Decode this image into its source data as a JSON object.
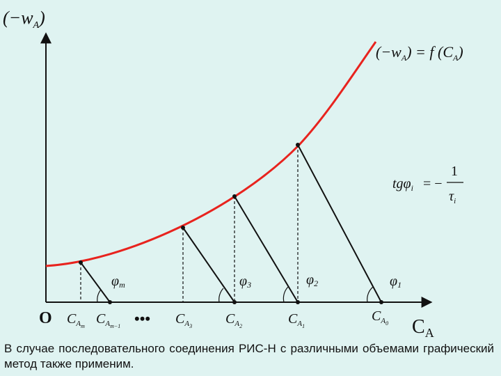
{
  "diagram": {
    "y_axis_label": "(−w",
    "y_axis_label_sub": "A",
    "y_axis_label_close": ")",
    "x_axis_label": "C",
    "x_axis_label_sub": "A",
    "origin_label": "O",
    "curve_label": "(−w",
    "curve_label_sub": "A",
    "curve_label_mid": ") = f (C",
    "curve_label_sub2": "A",
    "curve_label_close": ")",
    "formula_lhs": "tgφ",
    "formula_lhs_sub": "i",
    "formula_eq": "= −",
    "formula_num": "1",
    "formula_den": "τ",
    "formula_den_sub": "i",
    "ellipsis": "•••",
    "x_ticks": [
      {
        "main": "C",
        "sub": "A",
        "subsub": "m"
      },
      {
        "main": "C",
        "sub": "A",
        "subsub": "m−1"
      },
      {
        "main": "C",
        "sub": "A",
        "subsub": "3"
      },
      {
        "main": "C",
        "sub": "A",
        "subsub": "2"
      },
      {
        "main": "C",
        "sub": "A",
        "subsub": "1"
      },
      {
        "main": "C",
        "sub": "A",
        "subsub": "0"
      }
    ],
    "angles": [
      {
        "main": "φ",
        "sub": "m"
      },
      {
        "main": "φ",
        "sub": "3"
      },
      {
        "main": "φ",
        "sub": "2"
      },
      {
        "main": "φ",
        "sub": "1"
      }
    ],
    "colors": {
      "curve": "#e8231e",
      "lines": "#111111",
      "background": "#dff3f1"
    }
  },
  "caption": "В случае последовательного соединения РИС-Н с различными объемами графический метод также применим."
}
